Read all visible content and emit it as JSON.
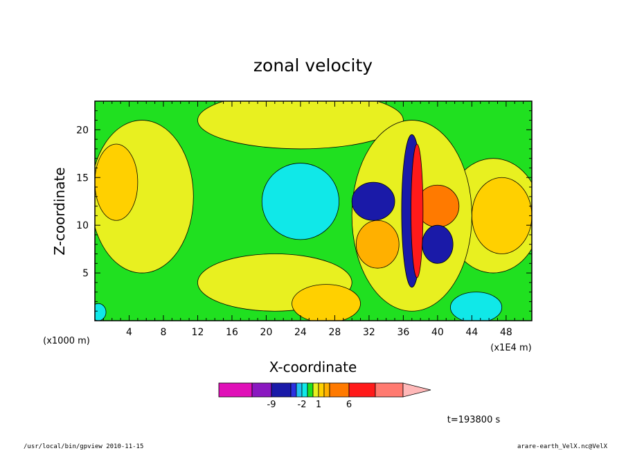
{
  "chart_data": {
    "type": "heatmap",
    "title": "zonal velocity",
    "xlabel": "X-coordinate",
    "ylabel": "Z-coordinate",
    "x_unit_label": "(x1E4 m)",
    "y_unit_label": "(x1000 m)",
    "x_ticks": [
      "4",
      "8",
      "12",
      "16",
      "20",
      "24",
      "28",
      "32",
      "36",
      "40",
      "44",
      "48"
    ],
    "x_tick_values": [
      4,
      8,
      12,
      16,
      20,
      24,
      28,
      32,
      36,
      40,
      44,
      48
    ],
    "y_ticks": [
      "5",
      "10",
      "15",
      "20"
    ],
    "y_tick_values": [
      5,
      10,
      15,
      20
    ],
    "xlim": [
      0,
      51
    ],
    "ylim": [
      0,
      23
    ],
    "colorbar": {
      "colors": [
        "#e010b8",
        "#8a18c0",
        "#1a1aa8",
        "#2a30e0",
        "#22c0f0",
        "#10e8e8",
        "#20e020",
        "#e8f020",
        "#ffd000",
        "#ffb000",
        "#ff7a00",
        "#ff1a1a",
        "#ff7a70",
        "#ffb8b8"
      ],
      "tick_labels": [
        "-9",
        "-2",
        "1",
        "6"
      ]
    },
    "field_levels": {
      "background": "#20e020",
      "patches": [
        {
          "cx": 5.5,
          "cy": 13,
          "rx": 6,
          "ry": 8,
          "color": "#e8f020"
        },
        {
          "cx": 2.5,
          "cy": 14.5,
          "rx": 2.5,
          "ry": 4,
          "color": "#ffd000"
        },
        {
          "cx": 24,
          "cy": 21,
          "rx": 12,
          "ry": 3,
          "color": "#e8f020"
        },
        {
          "cx": 21,
          "cy": 4,
          "rx": 9,
          "ry": 3,
          "color": "#e8f020"
        },
        {
          "cx": 27,
          "cy": 1.8,
          "rx": 4,
          "ry": 2,
          "color": "#ffd000"
        },
        {
          "cx": 24,
          "cy": 12.5,
          "rx": 4.5,
          "ry": 4,
          "color": "#10e8e8"
        },
        {
          "cx": 46.5,
          "cy": 11,
          "rx": 5.5,
          "ry": 6,
          "color": "#e8f020"
        },
        {
          "cx": 47.5,
          "cy": 11,
          "rx": 3.5,
          "ry": 4,
          "color": "#ffd000"
        },
        {
          "cx": 44.5,
          "cy": 1.4,
          "rx": 3,
          "ry": 1.6,
          "color": "#10e8e8"
        },
        {
          "cx": 0.4,
          "cy": 0.9,
          "rx": 0.9,
          "ry": 0.9,
          "color": "#10e8e8"
        },
        {
          "cx": 37,
          "cy": 11,
          "rx": 7,
          "ry": 10,
          "color": "#e8f020"
        },
        {
          "cx": 33,
          "cy": 8,
          "rx": 2.5,
          "ry": 2.5,
          "color": "#ffb000"
        },
        {
          "cx": 32.5,
          "cy": 12.5,
          "rx": 2.5,
          "ry": 2,
          "color": "#1a1aa8"
        },
        {
          "cx": 40,
          "cy": 12,
          "rx": 2.5,
          "ry": 2.2,
          "color": "#ff7a00"
        },
        {
          "cx": 40,
          "cy": 8,
          "rx": 1.8,
          "ry": 2,
          "color": "#1a1aa8"
        },
        {
          "cx": 37,
          "cy": 11.5,
          "rx": 1.2,
          "ry": 8,
          "color": "#1a1aa8"
        },
        {
          "cx": 37.6,
          "cy": 11.5,
          "rx": 0.7,
          "ry": 7,
          "color": "#ff1a1a"
        }
      ]
    },
    "time_label": "t=193800 s"
  },
  "footer": {
    "left": "/usr/local/bin/gpview  2010-11-15",
    "right": "arare-earth_VelX.nc@VelX"
  }
}
